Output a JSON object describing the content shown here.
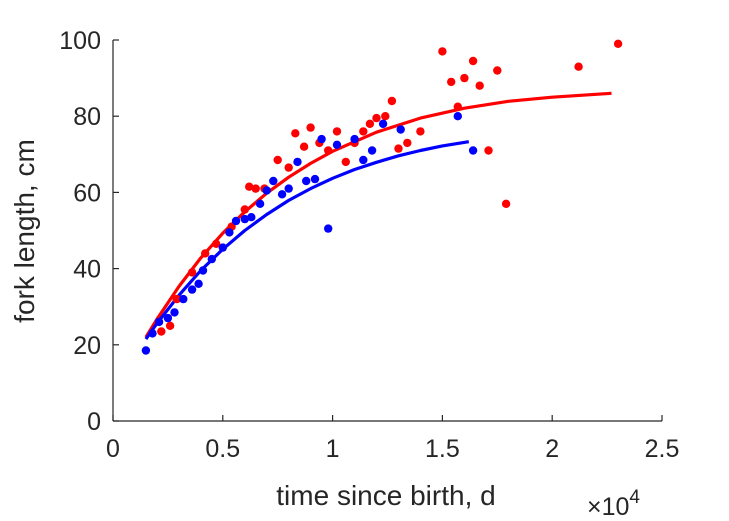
{
  "chart_data": {
    "type": "scatter",
    "title": "",
    "xlabel": "time since birth, d",
    "ylabel": "fork length, cm",
    "x_multiplier_label": "×10",
    "x_multiplier_exponent": "4",
    "xlim": [
      0,
      2.5
    ],
    "ylim": [
      0,
      100
    ],
    "x_ticks": [
      0,
      0.5,
      1,
      1.5,
      2,
      2.5
    ],
    "x_tick_labels": [
      "0",
      "0.5",
      "1",
      "1.5",
      "2",
      "2.5"
    ],
    "y_ticks": [
      0,
      20,
      40,
      60,
      80,
      100
    ],
    "y_tick_labels": [
      "0",
      "20",
      "40",
      "60",
      "80",
      "100"
    ],
    "grid": false,
    "series": [
      {
        "color": "#ff0000",
        "points": [
          [
            0.22,
            23.5
          ],
          [
            0.26,
            25
          ],
          [
            0.29,
            32
          ],
          [
            0.36,
            39
          ],
          [
            0.42,
            44
          ],
          [
            0.47,
            46.5
          ],
          [
            0.54,
            51
          ],
          [
            0.6,
            55.5
          ],
          [
            0.62,
            61.5
          ],
          [
            0.65,
            61
          ],
          [
            0.69,
            61
          ],
          [
            0.75,
            68.5
          ],
          [
            0.8,
            66.5
          ],
          [
            0.83,
            75.5
          ],
          [
            0.87,
            72
          ],
          [
            0.9,
            77
          ],
          [
            0.94,
            73
          ],
          [
            0.98,
            71
          ],
          [
            1.02,
            76
          ],
          [
            1.06,
            68
          ],
          [
            1.1,
            73
          ],
          [
            1.14,
            76
          ],
          [
            1.17,
            78
          ],
          [
            1.2,
            79.5
          ],
          [
            1.24,
            80
          ],
          [
            1.27,
            84
          ],
          [
            1.3,
            71.5
          ],
          [
            1.34,
            73
          ],
          [
            1.4,
            76
          ],
          [
            1.5,
            97
          ],
          [
            1.54,
            89
          ],
          [
            1.57,
            82.5
          ],
          [
            1.6,
            90
          ],
          [
            1.64,
            94.5
          ],
          [
            1.67,
            88
          ],
          [
            1.71,
            71
          ],
          [
            1.75,
            92
          ],
          [
            1.79,
            57
          ],
          [
            2.12,
            93
          ],
          [
            2.3,
            99
          ]
        ],
        "fit_curve": [
          [
            0.15,
            22
          ],
          [
            0.2,
            26.7
          ],
          [
            0.3,
            35.3
          ],
          [
            0.4,
            42.8
          ],
          [
            0.5,
            49.3
          ],
          [
            0.6,
            54.9
          ],
          [
            0.7,
            59.8
          ],
          [
            0.8,
            64
          ],
          [
            0.9,
            67.6
          ],
          [
            1.0,
            70.8
          ],
          [
            1.2,
            75.8
          ],
          [
            1.4,
            79.5
          ],
          [
            1.6,
            82.1
          ],
          [
            1.8,
            83.9
          ],
          [
            2.0,
            85
          ],
          [
            2.27,
            86
          ]
        ]
      },
      {
        "color": "#0000ff",
        "points": [
          [
            0.15,
            18.5
          ],
          [
            0.18,
            23
          ],
          [
            0.21,
            26
          ],
          [
            0.25,
            27
          ],
          [
            0.28,
            28.5
          ],
          [
            0.32,
            32
          ],
          [
            0.36,
            34.5
          ],
          [
            0.39,
            36
          ],
          [
            0.41,
            39.5
          ],
          [
            0.45,
            42.5
          ],
          [
            0.5,
            45.5
          ],
          [
            0.53,
            49.5
          ],
          [
            0.56,
            52.5
          ],
          [
            0.6,
            53
          ],
          [
            0.63,
            53.5
          ],
          [
            0.67,
            57
          ],
          [
            0.7,
            60.5
          ],
          [
            0.73,
            63
          ],
          [
            0.77,
            59.5
          ],
          [
            0.8,
            61
          ],
          [
            0.84,
            68
          ],
          [
            0.88,
            63
          ],
          [
            0.92,
            63.5
          ],
          [
            0.95,
            74
          ],
          [
            0.98,
            50.5
          ],
          [
            1.02,
            72.5
          ],
          [
            1.1,
            74
          ],
          [
            1.14,
            68.5
          ],
          [
            1.18,
            71
          ],
          [
            1.23,
            78
          ],
          [
            1.31,
            76.5
          ],
          [
            1.57,
            80
          ],
          [
            1.64,
            71
          ]
        ],
        "fit_curve": [
          [
            0.15,
            21.5
          ],
          [
            0.2,
            25.6
          ],
          [
            0.3,
            33
          ],
          [
            0.4,
            39.5
          ],
          [
            0.5,
            45.1
          ],
          [
            0.6,
            50
          ],
          [
            0.7,
            54.2
          ],
          [
            0.8,
            57.9
          ],
          [
            0.9,
            61
          ],
          [
            1.0,
            63.7
          ],
          [
            1.1,
            66
          ],
          [
            1.2,
            67.9
          ],
          [
            1.3,
            69.6
          ],
          [
            1.4,
            71
          ],
          [
            1.5,
            72.2
          ],
          [
            1.62,
            73.3
          ]
        ]
      }
    ]
  }
}
